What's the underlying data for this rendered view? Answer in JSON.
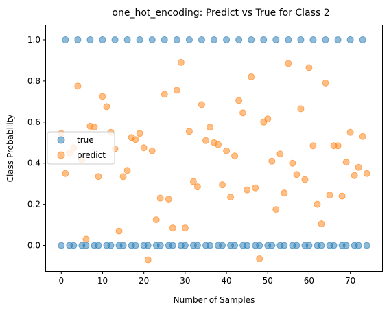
{
  "chart_data": {
    "type": "scatter",
    "title": "one_hot_encoding: Predict vs True for Class 2",
    "xlabel": "Number of Samples",
    "ylabel": "Class Probability",
    "xlim": [
      -3.7,
      77.7
    ],
    "ylim": [
      -0.125,
      1.07
    ],
    "xticks": [
      0,
      10,
      20,
      30,
      40,
      50,
      60,
      70
    ],
    "yticks": [
      0.0,
      0.2,
      0.4,
      0.6,
      0.8,
      1.0
    ],
    "ytick_labels": [
      "0.0",
      "0.2",
      "0.4",
      "0.6",
      "0.8",
      "1.0"
    ],
    "legend_position": "center-left",
    "grid": false,
    "series": [
      {
        "name": "true",
        "color": "#1f77b4",
        "x": [
          0,
          1,
          2,
          3,
          4,
          5,
          6,
          7,
          8,
          9,
          10,
          11,
          12,
          13,
          14,
          15,
          16,
          17,
          18,
          19,
          20,
          21,
          22,
          23,
          24,
          25,
          26,
          27,
          28,
          29,
          30,
          31,
          32,
          33,
          34,
          35,
          36,
          37,
          38,
          39,
          40,
          41,
          42,
          43,
          44,
          45,
          46,
          47,
          48,
          49,
          50,
          51,
          52,
          53,
          54,
          55,
          56,
          57,
          58,
          59,
          60,
          61,
          62,
          63,
          64,
          65,
          66,
          67,
          68,
          69,
          70,
          71,
          72,
          73,
          74
        ],
        "y": [
          0,
          1,
          0,
          0,
          1,
          0,
          0,
          1,
          0,
          0,
          1,
          0,
          0,
          1,
          0,
          0,
          1,
          0,
          0,
          1,
          0,
          0,
          1,
          0,
          0,
          1,
          0,
          0,
          1,
          0,
          0,
          1,
          0,
          0,
          1,
          0,
          0,
          1,
          0,
          0,
          1,
          0,
          0,
          1,
          0,
          0,
          1,
          0,
          0,
          1,
          0,
          0,
          1,
          0,
          0,
          1,
          0,
          0,
          1,
          0,
          0,
          1,
          0,
          0,
          1,
          0,
          0,
          1,
          0,
          0,
          1,
          0,
          0,
          1,
          0
        ]
      },
      {
        "name": "predict",
        "color": "#ff7f0e",
        "x": [
          0,
          1,
          2,
          3,
          4,
          5,
          6,
          7,
          8,
          9,
          10,
          11,
          12,
          13,
          14,
          15,
          16,
          17,
          18,
          19,
          20,
          21,
          22,
          23,
          24,
          25,
          26,
          27,
          28,
          29,
          30,
          31,
          32,
          33,
          34,
          35,
          36,
          37,
          38,
          39,
          40,
          41,
          42,
          43,
          44,
          45,
          46,
          47,
          48,
          49,
          50,
          51,
          52,
          53,
          54,
          55,
          56,
          57,
          58,
          59,
          60,
          61,
          62,
          63,
          64,
          65,
          66,
          67,
          68,
          69,
          70,
          71,
          72,
          73,
          74
        ],
        "y": [
          0.545,
          0.35,
          0.45,
          0.475,
          0.775,
          0.415,
          0.03,
          0.58,
          0.575,
          0.335,
          0.725,
          0.675,
          0.55,
          0.47,
          0.07,
          0.335,
          0.365,
          0.525,
          0.515,
          0.545,
          0.475,
          -0.07,
          0.46,
          0.125,
          0.23,
          0.735,
          0.225,
          0.085,
          0.755,
          0.89,
          0.085,
          0.555,
          0.31,
          0.285,
          0.685,
          0.51,
          0.575,
          0.5,
          0.49,
          0.295,
          0.46,
          0.235,
          0.435,
          0.705,
          0.645,
          0.27,
          0.82,
          0.28,
          -0.065,
          0.6,
          0.615,
          0.41,
          0.175,
          0.445,
          0.255,
          0.885,
          0.4,
          0.345,
          0.665,
          0.32,
          0.865,
          0.485,
          0.2,
          0.105,
          0.79,
          0.245,
          0.485,
          0.485,
          0.24,
          0.405,
          0.55,
          0.34,
          0.38,
          0.53,
          0.35
        ]
      }
    ]
  }
}
